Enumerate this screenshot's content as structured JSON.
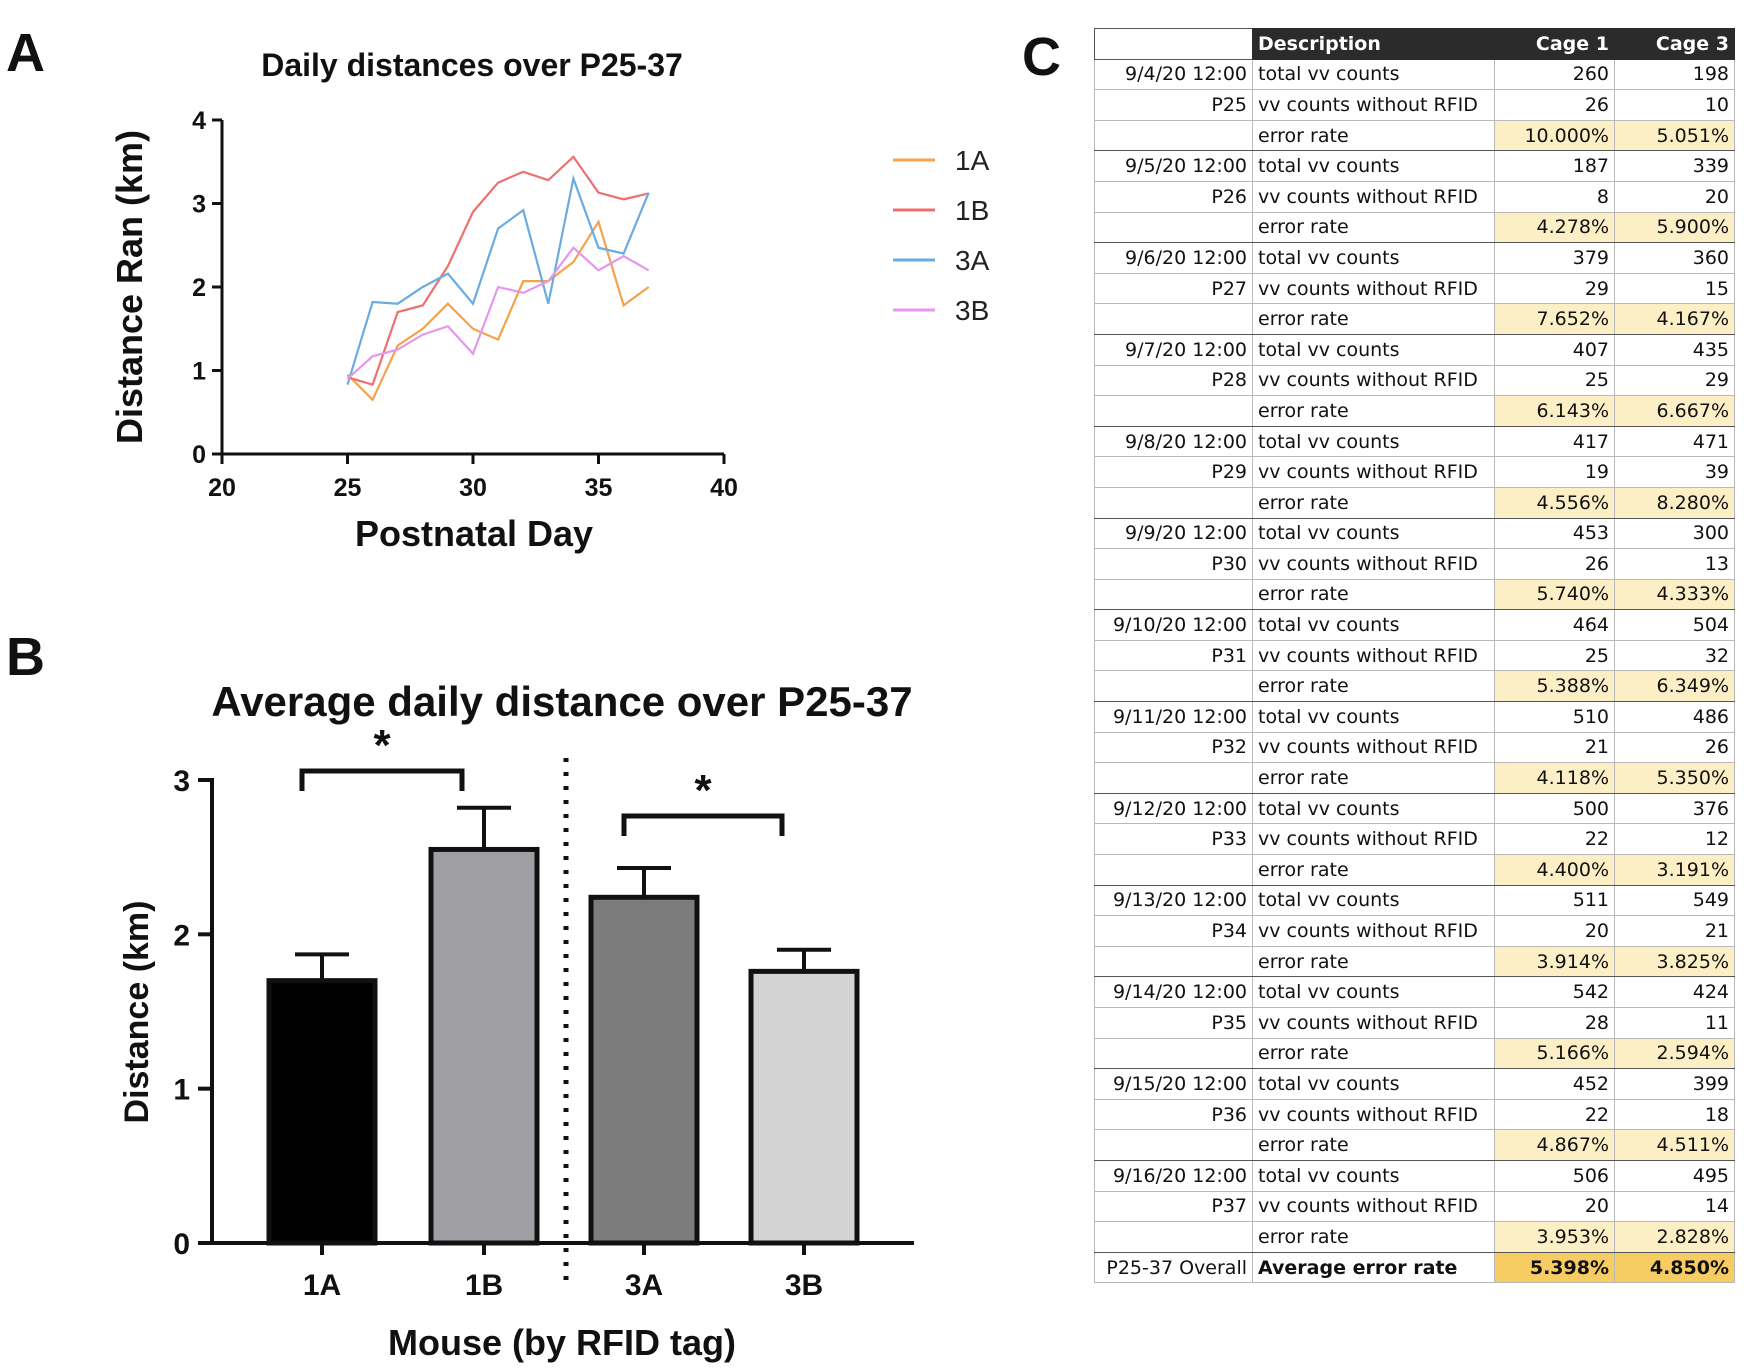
{
  "panels": {
    "a_letter": "A",
    "b_letter": "B",
    "c_letter": "C"
  },
  "chart_data": [
    {
      "type": "line",
      "title": "Daily distances over P25-37",
      "xlabel": "Postnatal Day",
      "ylabel": "Distance Ran  (km)",
      "xlim": [
        20,
        40
      ],
      "ylim": [
        0,
        4
      ],
      "xticks": [
        20,
        25,
        30,
        35,
        40
      ],
      "yticks": [
        0,
        1,
        2,
        3,
        4
      ],
      "grid": false,
      "legend_position": "right",
      "x": [
        25,
        26,
        27,
        28,
        29,
        30,
        31,
        32,
        33,
        34,
        35,
        36,
        37
      ],
      "series": [
        {
          "name": "1A",
          "color": "#f4a24c",
          "values": [
            0.95,
            0.65,
            1.3,
            1.5,
            1.8,
            1.5,
            1.37,
            2.07,
            2.07,
            2.3,
            2.78,
            1.78,
            2.0
          ]
        },
        {
          "name": "1B",
          "color": "#ef6f6f",
          "values": [
            0.92,
            0.83,
            1.7,
            1.78,
            2.25,
            2.9,
            3.25,
            3.38,
            3.28,
            3.56,
            3.13,
            3.05,
            3.12
          ]
        },
        {
          "name": "3A",
          "color": "#6aace2",
          "values": [
            0.83,
            1.82,
            1.8,
            2.0,
            2.16,
            1.8,
            2.7,
            2.92,
            1.8,
            3.3,
            2.47,
            2.4,
            3.13
          ]
        },
        {
          "name": "3B",
          "color": "#e596ee",
          "values": [
            0.9,
            1.17,
            1.25,
            1.43,
            1.53,
            1.2,
            2.0,
            1.93,
            2.07,
            2.47,
            2.2,
            2.37,
            2.2
          ]
        }
      ]
    },
    {
      "type": "bar",
      "title": "Average daily distance over P25-37",
      "xlabel": "Mouse (by RFID tag)",
      "ylabel": "Distance (km)",
      "ylim": [
        0,
        3
      ],
      "yticks": [
        0,
        1,
        2,
        3
      ],
      "categories": [
        "1A",
        "1B",
        "3A",
        "3B"
      ],
      "values": [
        1.7,
        2.55,
        2.24,
        1.76
      ],
      "errors": [
        0.17,
        0.27,
        0.19,
        0.14
      ],
      "bar_colors": [
        "#000000",
        "#a0a0a4",
        "#7c7c7c",
        "#d3d3d3"
      ],
      "significance": [
        {
          "between": [
            "1A",
            "1B"
          ],
          "label": "*"
        },
        {
          "between": [
            "3A",
            "3B"
          ],
          "label": "*"
        }
      ],
      "separator_between": [
        "1B",
        "3A"
      ]
    },
    {
      "type": "table",
      "headers": [
        "",
        "Description",
        "Cage 1",
        "Cage 3"
      ],
      "groups": [
        {
          "date": "9/4/20 12:00",
          "day": "P25",
          "total": [
            "260",
            "198"
          ],
          "without": [
            "26",
            "10"
          ],
          "rate": [
            "10.000%",
            "5.051%"
          ]
        },
        {
          "date": "9/5/20 12:00",
          "day": "P26",
          "total": [
            "187",
            "339"
          ],
          "without": [
            "8",
            "20"
          ],
          "rate": [
            "4.278%",
            "5.900%"
          ]
        },
        {
          "date": "9/6/20 12:00",
          "day": "P27",
          "total": [
            "379",
            "360"
          ],
          "without": [
            "29",
            "15"
          ],
          "rate": [
            "7.652%",
            "4.167%"
          ]
        },
        {
          "date": "9/7/20 12:00",
          "day": "P28",
          "total": [
            "407",
            "435"
          ],
          "without": [
            "25",
            "29"
          ],
          "rate": [
            "6.143%",
            "6.667%"
          ]
        },
        {
          "date": "9/8/20 12:00",
          "day": "P29",
          "total": [
            "417",
            "471"
          ],
          "without": [
            "19",
            "39"
          ],
          "rate": [
            "4.556%",
            "8.280%"
          ]
        },
        {
          "date": "9/9/20 12:00",
          "day": "P30",
          "total": [
            "453",
            "300"
          ],
          "without": [
            "26",
            "13"
          ],
          "rate": [
            "5.740%",
            "4.333%"
          ]
        },
        {
          "date": "9/10/20 12:00",
          "day": "P31",
          "total": [
            "464",
            "504"
          ],
          "without": [
            "25",
            "32"
          ],
          "rate": [
            "5.388%",
            "6.349%"
          ]
        },
        {
          "date": "9/11/20 12:00",
          "day": "P32",
          "total": [
            "510",
            "486"
          ],
          "without": [
            "21",
            "26"
          ],
          "rate": [
            "4.118%",
            "5.350%"
          ]
        },
        {
          "date": "9/12/20 12:00",
          "day": "P33",
          "total": [
            "500",
            "376"
          ],
          "without": [
            "22",
            "12"
          ],
          "rate": [
            "4.400%",
            "3.191%"
          ]
        },
        {
          "date": "9/13/20 12:00",
          "day": "P34",
          "total": [
            "511",
            "549"
          ],
          "without": [
            "20",
            "21"
          ],
          "rate": [
            "3.914%",
            "3.825%"
          ]
        },
        {
          "date": "9/14/20 12:00",
          "day": "P35",
          "total": [
            "542",
            "424"
          ],
          "without": [
            "28",
            "11"
          ],
          "rate": [
            "5.166%",
            "2.594%"
          ]
        },
        {
          "date": "9/15/20 12:00",
          "day": "P36",
          "total": [
            "452",
            "399"
          ],
          "without": [
            "22",
            "18"
          ],
          "rate": [
            "4.867%",
            "4.511%"
          ]
        },
        {
          "date": "9/16/20 12:00",
          "day": "P37",
          "total": [
            "506",
            "495"
          ],
          "without": [
            "20",
            "14"
          ],
          "rate": [
            "3.953%",
            "2.828%"
          ]
        }
      ],
      "row_labels": {
        "total": "total vv counts",
        "without": "vv counts without RFID",
        "rate": "error rate"
      },
      "overall": {
        "label": "P25-37 Overall",
        "desc": "Average error rate",
        "values": [
          "5.398%",
          "4.850%"
        ]
      }
    }
  ]
}
